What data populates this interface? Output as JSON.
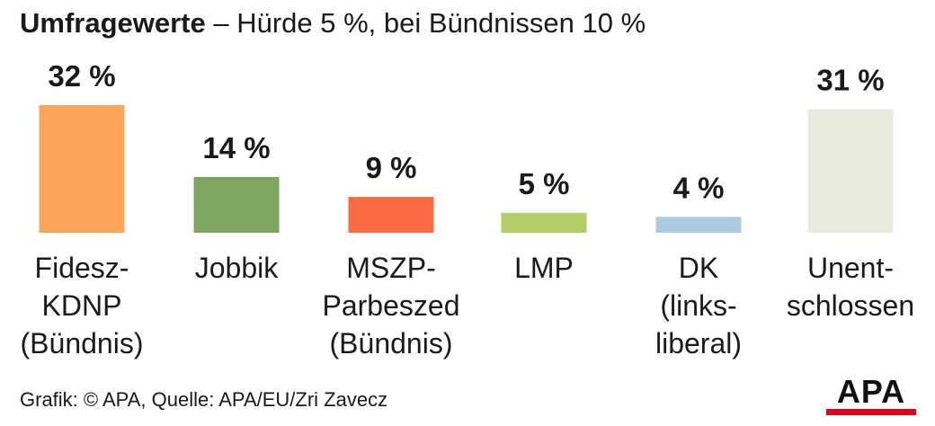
{
  "title": {
    "bold": "Umfragewerte",
    "rest": " – Hürde 5 %, bei Bündnissen 10 %"
  },
  "chart_data": {
    "type": "bar",
    "categories": [
      [
        "Fidesz-",
        "KDNP",
        "(Bündnis)"
      ],
      [
        "Jobbik"
      ],
      [
        "MSZP-",
        "Parbeszed",
        "(Bündnis)"
      ],
      [
        "LMP"
      ],
      [
        "DK",
        "(links-",
        "liberal)"
      ],
      [
        "Unent-",
        "schlossen"
      ]
    ],
    "values": [
      32,
      14,
      9,
      5,
      4,
      31
    ],
    "value_labels": [
      "32 %",
      "14 %",
      "9 %",
      "5 %",
      "4 %",
      "31 %"
    ],
    "colors": [
      "#FBA55A",
      "#7EA661",
      "#FB6B43",
      "#B5CE6A",
      "#ACCAE0",
      "#EAEBE0"
    ],
    "unit": "%",
    "title": "Umfragewerte",
    "xlabel": "",
    "ylabel": "",
    "ylim": [
      0,
      32
    ],
    "grid": false,
    "legend": "none"
  },
  "source": "Grafik: © APA, Quelle: APA/EU/Zri Zavecz",
  "logo": {
    "text": "APA",
    "stripe_color": "#e2001a"
  }
}
